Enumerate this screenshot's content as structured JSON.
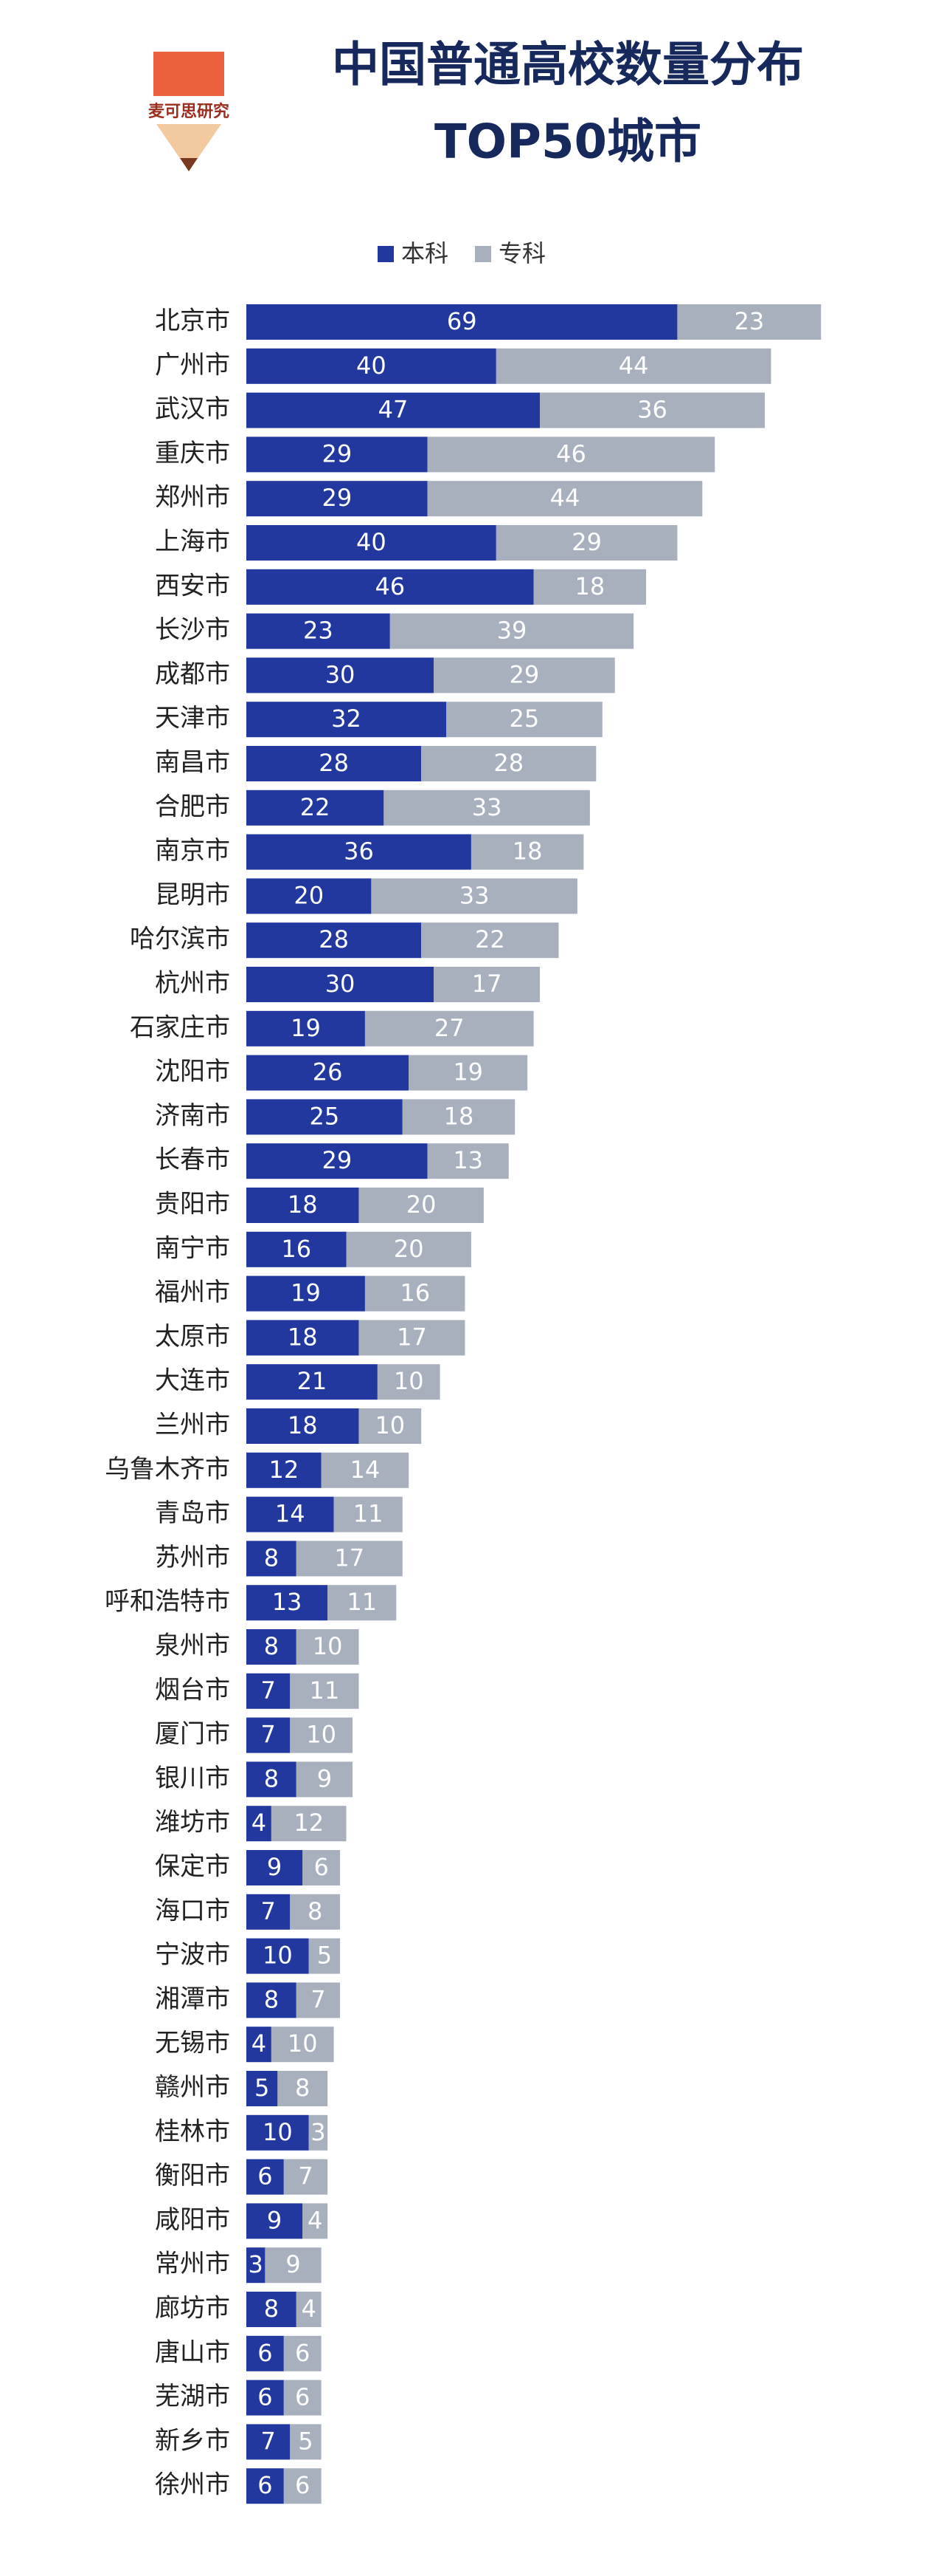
{
  "brand": "麦可思研究",
  "chart_data": {
    "type": "stacked-barh",
    "title": "中国普通高校数量分布",
    "subtitle": "TOP50城市",
    "categories": [
      "北京市",
      "广州市",
      "武汉市",
      "重庆市",
      "郑州市",
      "上海市",
      "西安市",
      "长沙市",
      "成都市",
      "天津市",
      "南昌市",
      "合肥市",
      "南京市",
      "昆明市",
      "哈尔滨市",
      "杭州市",
      "石家庄市",
      "沈阳市",
      "济南市",
      "长春市",
      "贵阳市",
      "南宁市",
      "福州市",
      "太原市",
      "大连市",
      "兰州市",
      "乌鲁木齐市",
      "青岛市",
      "苏州市",
      "呼和浩特市",
      "泉州市",
      "烟台市",
      "厦门市",
      "银川市",
      "潍坊市",
      "保定市",
      "海口市",
      "宁波市",
      "湘潭市",
      "无锡市",
      "赣州市",
      "桂林市",
      "衡阳市",
      "咸阳市",
      "常州市",
      "廊坊市",
      "唐山市",
      "芜湖市",
      "新乡市",
      "徐州市"
    ],
    "series": [
      {
        "name": "本科",
        "color": "#22389e",
        "values": [
          69,
          40,
          47,
          29,
          29,
          40,
          46,
          23,
          30,
          32,
          28,
          22,
          36,
          20,
          28,
          30,
          19,
          26,
          25,
          29,
          18,
          16,
          19,
          18,
          21,
          18,
          12,
          14,
          8,
          13,
          8,
          7,
          7,
          8,
          4,
          9,
          7,
          10,
          8,
          4,
          5,
          10,
          6,
          9,
          3,
          8,
          6,
          6,
          7,
          6
        ]
      },
      {
        "name": "专科",
        "color": "#a8b0be",
        "values": [
          23,
          44,
          36,
          46,
          44,
          29,
          18,
          39,
          29,
          25,
          28,
          33,
          18,
          33,
          22,
          17,
          27,
          19,
          18,
          13,
          20,
          20,
          16,
          17,
          10,
          10,
          14,
          11,
          17,
          11,
          10,
          11,
          10,
          9,
          12,
          6,
          8,
          5,
          7,
          10,
          8,
          3,
          7,
          4,
          9,
          4,
          6,
          6,
          5,
          6
        ]
      }
    ],
    "xlim": [
      0,
      100
    ],
    "legend": "top"
  }
}
